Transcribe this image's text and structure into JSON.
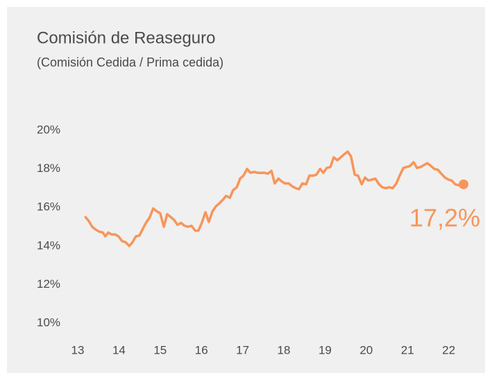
{
  "chart_data": {
    "type": "line",
    "title": "Comisión de Reaseguro",
    "subtitle": "(Comisión Cedida / Prima cedida)",
    "x": [
      13.19,
      13.27,
      13.35,
      13.44,
      13.52,
      13.61,
      13.67,
      13.74,
      13.82,
      13.91,
      13.99,
      14.08,
      14.16,
      14.25,
      14.33,
      14.41,
      14.5,
      14.58,
      14.67,
      14.75,
      14.83,
      14.92,
      15.0,
      15.09,
      15.17,
      15.26,
      15.34,
      15.42,
      15.51,
      15.59,
      15.68,
      15.76,
      15.85,
      15.93,
      16.01,
      16.1,
      16.18,
      16.27,
      16.35,
      16.43,
      16.52,
      16.6,
      16.69,
      16.77,
      16.86,
      16.94,
      17.02,
      17.11,
      17.19,
      17.28,
      17.36,
      17.44,
      17.53,
      17.61,
      17.7,
      17.78,
      17.87,
      17.95,
      18.03,
      18.12,
      18.2,
      18.29,
      18.37,
      18.45,
      18.54,
      18.62,
      18.71,
      18.79,
      18.88,
      18.96,
      19.04,
      19.13,
      19.21,
      19.3,
      19.38,
      19.46,
      19.55,
      19.63,
      19.72,
      19.8,
      19.89,
      19.97,
      20.05,
      20.14,
      20.22,
      20.31,
      20.39,
      20.47,
      20.56,
      20.64,
      20.73,
      20.81,
      20.9,
      20.98,
      21.06,
      21.15,
      21.23,
      21.32,
      21.4,
      21.48,
      21.57,
      21.65,
      21.74,
      21.82,
      21.91,
      21.99,
      22.07,
      22.16,
      22.24,
      22.36
    ],
    "series": [
      {
        "color": "#f7955a",
        "values": [
          15.5,
          15.3,
          15.0,
          14.85,
          14.75,
          14.7,
          14.5,
          14.7,
          14.6,
          14.6,
          14.5,
          14.25,
          14.2,
          14.0,
          14.2,
          14.5,
          14.55,
          14.9,
          15.25,
          15.5,
          15.95,
          15.8,
          15.7,
          15.0,
          15.65,
          15.5,
          15.35,
          15.1,
          15.2,
          15.05,
          15.0,
          15.05,
          14.8,
          14.8,
          15.2,
          15.75,
          15.25,
          15.8,
          16.05,
          16.2,
          16.4,
          16.6,
          16.5,
          16.9,
          17.05,
          17.5,
          17.65,
          18.0,
          17.8,
          17.85,
          17.8,
          17.8,
          17.8,
          17.75,
          17.9,
          17.25,
          17.5,
          17.35,
          17.25,
          17.25,
          17.1,
          17.0,
          16.95,
          17.25,
          17.2,
          17.65,
          17.65,
          17.7,
          18.0,
          17.8,
          18.05,
          18.1,
          18.6,
          18.45,
          18.6,
          18.75,
          18.9,
          18.65,
          17.7,
          17.65,
          17.2,
          17.55,
          17.4,
          17.45,
          17.5,
          17.2,
          17.05,
          17.0,
          17.05,
          17.0,
          17.25,
          17.65,
          18.05,
          18.1,
          18.15,
          18.35,
          18.05,
          18.1,
          18.2,
          18.3,
          18.15,
          18.0,
          17.95,
          17.75,
          17.55,
          17.45,
          17.4,
          17.2,
          17.15,
          17.2
        ],
        "last_value_label": "17,2%"
      }
    ],
    "xlim": [
      13,
      22.5
    ],
    "xticks": [
      13,
      14,
      15,
      16,
      17,
      18,
      19,
      20,
      21,
      22
    ],
    "ylim": [
      10,
      20
    ],
    "yticks": [
      {
        "value": 10,
        "label": "10%"
      },
      {
        "value": 12,
        "label": "12%"
      },
      {
        "value": 14,
        "label": "14%"
      },
      {
        "value": 16,
        "label": "16%"
      },
      {
        "value": 18,
        "label": "18%"
      },
      {
        "value": 20,
        "label": "20%"
      }
    ],
    "grid": false
  }
}
